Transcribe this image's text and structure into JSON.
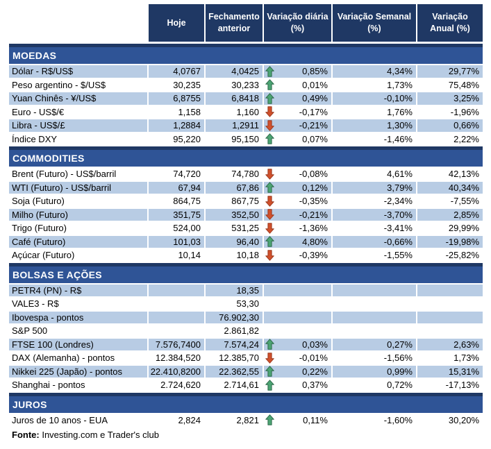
{
  "colors": {
    "header_bg": "#1F3864",
    "section_bg": "#2F5496",
    "section_border": "#1F3864",
    "row_shade": "#B8CCE4",
    "up_arrow_fill": "#4CA473",
    "up_arrow_stroke": "#2F6B4C",
    "down_arrow_fill": "#D0502C",
    "down_arrow_stroke": "#9C3A1F"
  },
  "footer": {
    "label": "Fonte:",
    "text": " Investing.com e Trader's club"
  },
  "chart_data": {
    "type": "table",
    "columns": [
      "",
      "Hoje",
      "Fechamento anterior",
      "Variação diária (%)",
      "Variação Semanal (%)",
      "Variação Anual (%)"
    ],
    "sections": [
      {
        "title": "MOEDAS",
        "rows": [
          {
            "label": "Dólar - R$/US$",
            "hoje": "4,0767",
            "fechamento": "4,0425",
            "trend": "up",
            "diaria": "0,85%",
            "semanal": "4,34%",
            "anual": "29,77%",
            "shaded": true
          },
          {
            "label": "Peso argentino - $/US$",
            "hoje": "30,235",
            "fechamento": "30,233",
            "trend": "up",
            "diaria": "0,01%",
            "semanal": "1,73%",
            "anual": "75,48%",
            "shaded": false
          },
          {
            "label": "Yuan Chinês - ¥/US$",
            "hoje": "6,8755",
            "fechamento": "6,8418",
            "trend": "up",
            "diaria": "0,49%",
            "semanal": "-0,10%",
            "anual": "3,25%",
            "shaded": true
          },
          {
            "label": "Euro - US$/€",
            "hoje": "1,158",
            "fechamento": "1,160",
            "trend": "down",
            "diaria": "-0,17%",
            "semanal": "1,76%",
            "anual": "-1,96%",
            "shaded": false
          },
          {
            "label": "Libra - US$/£",
            "hoje": "1,2884",
            "fechamento": "1,2911",
            "trend": "down",
            "diaria": "-0,21%",
            "semanal": "1,30%",
            "anual": "0,66%",
            "shaded": true
          },
          {
            "label": "Índice DXY",
            "hoje": "95,220",
            "fechamento": "95,150",
            "trend": "up",
            "diaria": "0,07%",
            "semanal": "-1,46%",
            "anual": "2,22%",
            "shaded": false
          }
        ]
      },
      {
        "title": "COMMODITIES",
        "rows": [
          {
            "label": "Brent (Futuro) - US$/barril",
            "hoje": "74,720",
            "fechamento": "74,780",
            "trend": "down",
            "diaria": "-0,08%",
            "semanal": "4,61%",
            "anual": "42,13%",
            "shaded": false
          },
          {
            "label": "WTI (Futuro) - US$/barril",
            "hoje": "67,94",
            "fechamento": "67,86",
            "trend": "up",
            "diaria": "0,12%",
            "semanal": "3,79%",
            "anual": "40,34%",
            "shaded": true
          },
          {
            "label": "Soja (Futuro)",
            "hoje": "864,75",
            "fechamento": "867,75",
            "trend": "down",
            "diaria": "-0,35%",
            "semanal": "-2,34%",
            "anual": "-7,55%",
            "shaded": false
          },
          {
            "label": "Milho (Futuro)",
            "hoje": "351,75",
            "fechamento": "352,50",
            "trend": "down",
            "diaria": "-0,21%",
            "semanal": "-3,70%",
            "anual": "2,85%",
            "shaded": true
          },
          {
            "label": "Trigo (Futuro)",
            "hoje": "524,00",
            "fechamento": "531,25",
            "trend": "down",
            "diaria": "-1,36%",
            "semanal": "-3,41%",
            "anual": "29,99%",
            "shaded": false
          },
          {
            "label": "Café (Futuro)",
            "hoje": "101,03",
            "fechamento": "96,40",
            "trend": "up",
            "diaria": "4,80%",
            "semanal": "-0,66%",
            "anual": "-19,98%",
            "shaded": true
          },
          {
            "label": "Açúcar (Futuro)",
            "hoje": "10,14",
            "fechamento": "10,18",
            "trend": "down",
            "diaria": "-0,39%",
            "semanal": "-1,55%",
            "anual": "-25,82%",
            "shaded": false
          }
        ]
      },
      {
        "title": "BOLSAS E AÇÕES",
        "rows": [
          {
            "label": "PETR4 (PN) - R$",
            "hoje": "",
            "fechamento": "18,35",
            "trend": "",
            "diaria": "",
            "semanal": "",
            "anual": "",
            "shaded": true
          },
          {
            "label": "VALE3 - R$",
            "hoje": "",
            "fechamento": "53,30",
            "trend": "",
            "diaria": "",
            "semanal": "",
            "anual": "",
            "shaded": false
          },
          {
            "label": "Ibovespa - pontos",
            "hoje": "",
            "fechamento": "76.902,30",
            "trend": "",
            "diaria": "",
            "semanal": "",
            "anual": "",
            "shaded": true
          },
          {
            "label": "S&P 500",
            "hoje": "",
            "fechamento": "2.861,82",
            "trend": "",
            "diaria": "",
            "semanal": "",
            "anual": "",
            "shaded": false
          },
          {
            "label": "FTSE 100 (Londres)",
            "hoje": "7.576,7400",
            "fechamento": "7.574,24",
            "trend": "up",
            "diaria": "0,03%",
            "semanal": "0,27%",
            "anual": "2,63%",
            "shaded": true
          },
          {
            "label": "DAX (Alemanha) - pontos",
            "hoje": "12.384,520",
            "fechamento": "12.385,70",
            "trend": "down",
            "diaria": "-0,01%",
            "semanal": "-1,56%",
            "anual": "1,73%",
            "shaded": false
          },
          {
            "label": "Nikkei 225 (Japão) - pontos",
            "hoje": "22.410,8200",
            "fechamento": "22.362,55",
            "trend": "up",
            "diaria": "0,22%",
            "semanal": "0,99%",
            "anual": "15,31%",
            "shaded": true
          },
          {
            "label": "Shanghai - pontos",
            "hoje": "2.724,620",
            "fechamento": "2.714,61",
            "trend": "up",
            "diaria": "0,37%",
            "semanal": "0,72%",
            "anual": "-17,13%",
            "shaded": false
          }
        ]
      },
      {
        "title": "JUROS",
        "rows": [
          {
            "label": "Juros de 10 anos - EUA",
            "hoje": "2,824",
            "fechamento": "2,821",
            "trend": "up",
            "diaria": "0,11%",
            "semanal": "-1,60%",
            "anual": "30,20%",
            "shaded": false
          }
        ]
      }
    ]
  }
}
